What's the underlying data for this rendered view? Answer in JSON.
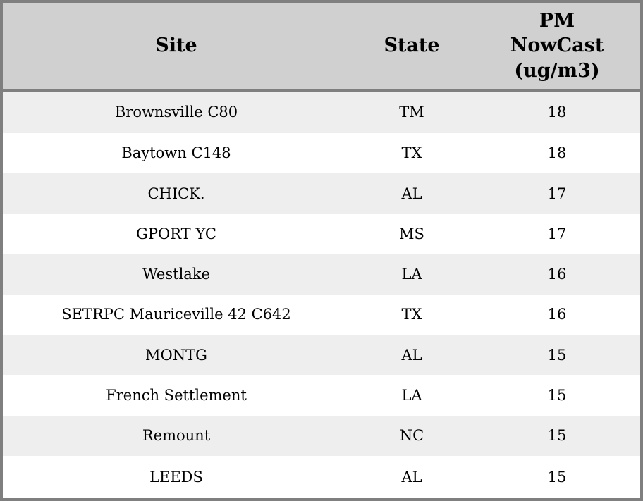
{
  "chart_data": {
    "type": "table",
    "title": "",
    "columns": [
      "Site",
      "State",
      "PM NowCast (ug/m3)"
    ],
    "rows": [
      [
        "Brownsville C80",
        "TM",
        18
      ],
      [
        "Baytown C148",
        "TX",
        18
      ],
      [
        "CHICK.",
        "AL",
        17
      ],
      [
        "GPORT YC",
        "MS",
        17
      ],
      [
        "Westlake",
        "LA",
        16
      ],
      [
        "SETRPC Mauriceville 42 C642",
        "TX",
        16
      ],
      [
        "MONTG",
        "AL",
        15
      ],
      [
        "French Settlement",
        "LA",
        15
      ],
      [
        "Remount",
        "NC",
        15
      ],
      [
        "LEEDS",
        "AL",
        15
      ]
    ]
  },
  "header": {
    "site": "Site",
    "state": "State",
    "pm": "PM\nNowCast\n(ug/m3)"
  },
  "colors": {
    "header_bg": "#d0d0d0",
    "row_alt_bg": "#eeeeee",
    "row_bg": "#ffffff",
    "border": "#7f7f7f",
    "text": "#000000"
  }
}
